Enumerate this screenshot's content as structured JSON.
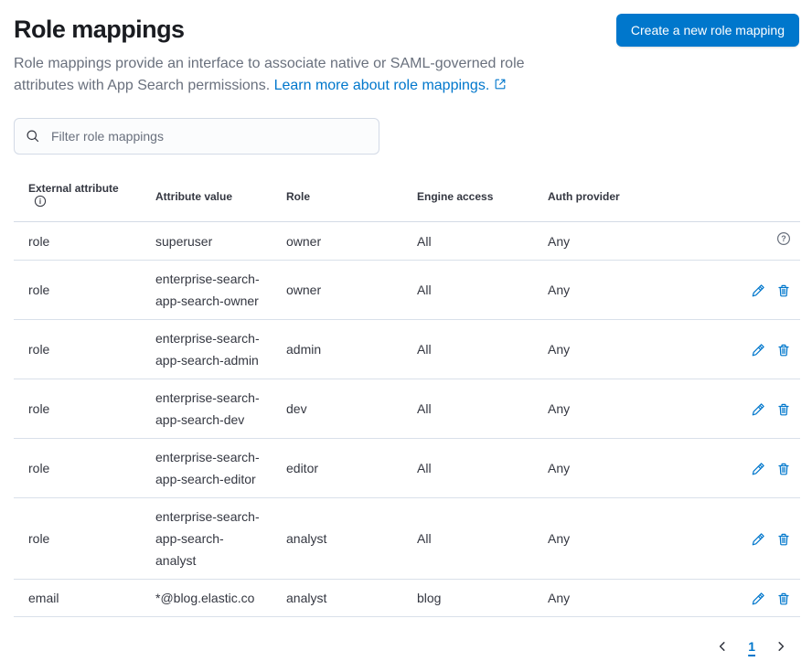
{
  "page": {
    "title": "Role mappings",
    "description": "Role mappings provide an interface to associate native or SAML-governed role attributes with App Search permissions. ",
    "learn_more_label": "Learn more about role mappings.",
    "create_button_label": "Create a new role mapping"
  },
  "filter": {
    "placeholder": "Filter role mappings"
  },
  "colors": {
    "primary": "#0077cc",
    "link": "#0077cc",
    "title_text": "#1a1c21",
    "body_text": "#343741",
    "subdued_text": "#69707d",
    "border": "#d3dae6"
  },
  "icons": {
    "search-icon": "magnifying glass",
    "info-icon": "circled letter i",
    "help-icon": "circled question mark",
    "external-link-icon": "box with outgoing arrow",
    "edit-icon": "pencil",
    "delete-icon": "trash can",
    "chevron-left-icon": "left angle bracket",
    "chevron-right-icon": "right angle bracket"
  },
  "table": {
    "columns": [
      "External attribute",
      "Attribute value",
      "Role",
      "Engine access",
      "Auth provider"
    ],
    "rows": [
      {
        "external_attribute": "role",
        "attribute_value": "superuser",
        "role": "owner",
        "engine_access": "All",
        "auth_provider": "Any",
        "actions": "help"
      },
      {
        "external_attribute": "role",
        "attribute_value": "enterprise-search-app-search-owner",
        "role": "owner",
        "engine_access": "All",
        "auth_provider": "Any",
        "actions": "edit-delete"
      },
      {
        "external_attribute": "role",
        "attribute_value": "enterprise-search-app-search-admin",
        "role": "admin",
        "engine_access": "All",
        "auth_provider": "Any",
        "actions": "edit-delete"
      },
      {
        "external_attribute": "role",
        "attribute_value": "enterprise-search-app-search-dev",
        "role": "dev",
        "engine_access": "All",
        "auth_provider": "Any",
        "actions": "edit-delete"
      },
      {
        "external_attribute": "role",
        "attribute_value": "enterprise-search-app-search-editor",
        "role": "editor",
        "engine_access": "All",
        "auth_provider": "Any",
        "actions": "edit-delete"
      },
      {
        "external_attribute": "role",
        "attribute_value": "enterprise-search-app-search-analyst",
        "role": "analyst",
        "engine_access": "All",
        "auth_provider": "Any",
        "actions": "edit-delete"
      },
      {
        "external_attribute": "email",
        "attribute_value": "*@blog.elastic.co",
        "role": "analyst",
        "engine_access": "blog",
        "auth_provider": "Any",
        "actions": "edit-delete"
      }
    ]
  },
  "pagination": {
    "current_page": "1"
  }
}
